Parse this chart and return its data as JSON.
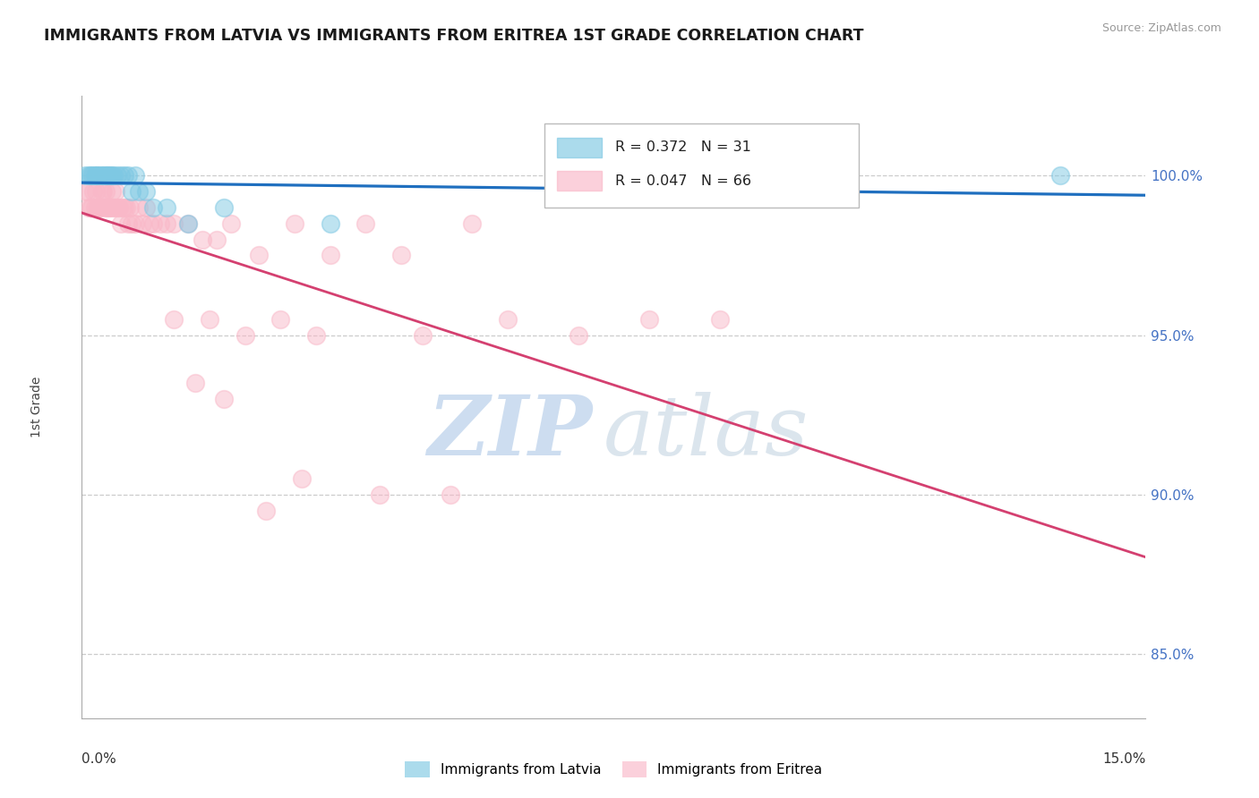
{
  "title": "IMMIGRANTS FROM LATVIA VS IMMIGRANTS FROM ERITREA 1ST GRADE CORRELATION CHART",
  "source": "Source: ZipAtlas.com",
  "ylabel": "1st Grade",
  "xmin": 0.0,
  "xmax": 15.0,
  "ymin": 83.0,
  "ymax": 102.5,
  "yticks": [
    85.0,
    90.0,
    95.0,
    100.0
  ],
  "ytick_labels": [
    "85.0%",
    "90.0%",
    "95.0%",
    "100.0%"
  ],
  "legend_line1": "R = 0.372   N = 31",
  "legend_line2": "R = 0.047   N = 66",
  "legend_label_latvia": "Immigrants from Latvia",
  "legend_label_eritrea": "Immigrants from Eritrea",
  "color_latvia": "#7ec8e3",
  "color_eritrea": "#f9b8c8",
  "color_latvia_line": "#1f6fbf",
  "color_eritrea_line": "#d44070",
  "color_axis_right": "#4472c4",
  "latvia_x": [
    0.05,
    0.1,
    0.12,
    0.15,
    0.18,
    0.2,
    0.22,
    0.25,
    0.28,
    0.3,
    0.33,
    0.35,
    0.38,
    0.4,
    0.42,
    0.45,
    0.5,
    0.55,
    0.6,
    0.65,
    0.7,
    0.75,
    0.8,
    0.9,
    1.0,
    1.2,
    1.5,
    2.0,
    3.5,
    10.5,
    13.8
  ],
  "latvia_y": [
    100.0,
    100.0,
    100.0,
    100.0,
    100.0,
    100.0,
    100.0,
    100.0,
    100.0,
    100.0,
    100.0,
    100.0,
    100.0,
    100.0,
    100.0,
    100.0,
    100.0,
    100.0,
    100.0,
    100.0,
    99.5,
    100.0,
    99.5,
    99.5,
    99.0,
    99.0,
    98.5,
    99.0,
    98.5,
    99.5,
    100.0
  ],
  "eritrea_x": [
    0.05,
    0.08,
    0.1,
    0.12,
    0.14,
    0.16,
    0.18,
    0.2,
    0.22,
    0.24,
    0.26,
    0.28,
    0.3,
    0.32,
    0.34,
    0.36,
    0.38,
    0.4,
    0.42,
    0.44,
    0.46,
    0.48,
    0.5,
    0.52,
    0.55,
    0.58,
    0.6,
    0.63,
    0.65,
    0.68,
    0.7,
    0.75,
    0.8,
    0.85,
    0.9,
    0.95,
    1.0,
    1.1,
    1.2,
    1.3,
    1.5,
    1.7,
    1.9,
    2.1,
    2.5,
    3.0,
    3.5,
    4.0,
    4.5,
    5.5,
    1.3,
    1.8,
    2.3,
    2.8,
    3.3,
    4.8,
    6.0,
    7.0,
    8.0,
    9.0,
    1.6,
    2.0,
    2.6,
    3.1,
    4.2,
    5.2
  ],
  "eritrea_y": [
    99.5,
    99.5,
    99.0,
    99.0,
    99.0,
    99.5,
    99.0,
    99.5,
    99.0,
    99.0,
    99.0,
    99.5,
    99.5,
    99.0,
    99.5,
    99.0,
    99.0,
    99.0,
    99.5,
    99.0,
    99.0,
    99.5,
    99.0,
    99.0,
    98.5,
    99.0,
    99.0,
    99.0,
    98.5,
    99.0,
    98.5,
    98.5,
    99.0,
    98.5,
    99.0,
    98.5,
    98.5,
    98.5,
    98.5,
    98.5,
    98.5,
    98.0,
    98.0,
    98.5,
    97.5,
    98.5,
    97.5,
    98.5,
    97.5,
    98.5,
    95.5,
    95.5,
    95.0,
    95.5,
    95.0,
    95.0,
    95.5,
    95.0,
    95.5,
    95.5,
    93.5,
    93.0,
    89.5,
    90.5,
    90.0,
    90.0
  ]
}
